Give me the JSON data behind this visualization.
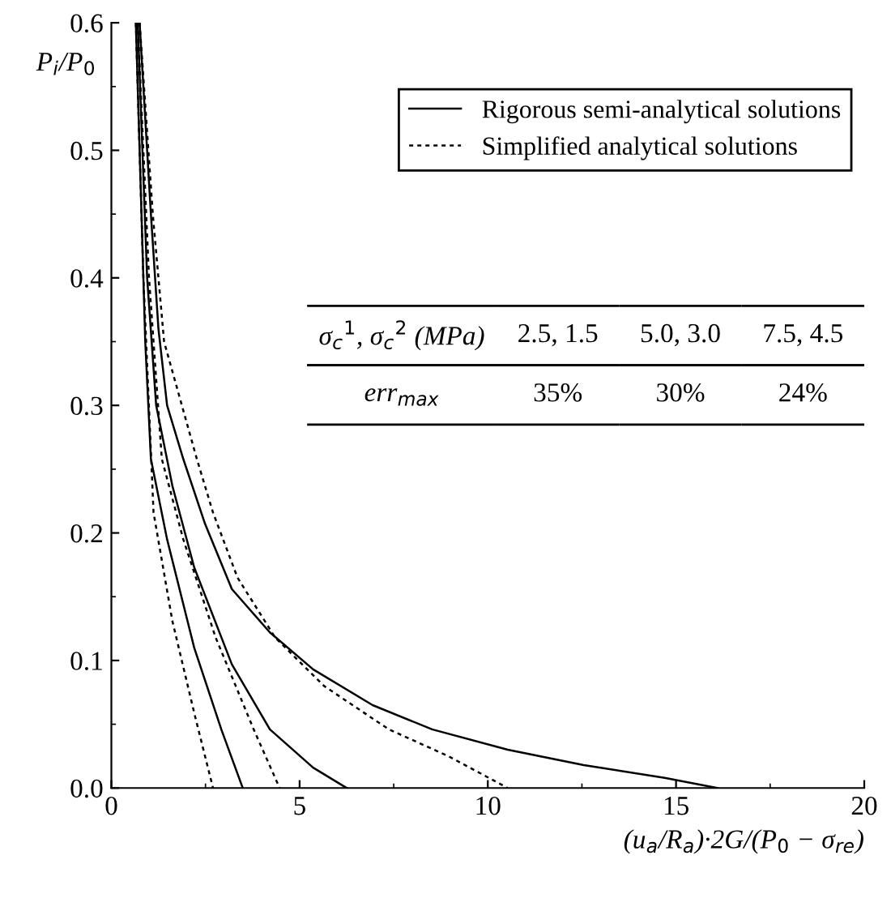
{
  "chart_data": {
    "type": "line",
    "xlabel": "(u$_{a}$/R$_{a}$)·2G/(P$_{0}$ − σ$_{re}$)",
    "ylabel": "P$_{i}$/P$_{0}$",
    "xlim": [
      0,
      20
    ],
    "ylim": [
      0,
      0.6
    ],
    "xticks": [
      0,
      5,
      10,
      15,
      20
    ],
    "yticks": [
      {
        "value": 0,
        "label": "0.0"
      },
      {
        "value": 0.1,
        "label": "0.1"
      },
      {
        "value": 0.2,
        "label": "0.2"
      },
      {
        "value": 0.3,
        "label": "0.3"
      },
      {
        "value": 0.4,
        "label": "0.4"
      },
      {
        "value": 0.5,
        "label": "0.5"
      },
      {
        "value": 0.6,
        "label": "0.6"
      }
    ],
    "legend": "top right",
    "marker": "none",
    "series": [
      {
        "name": "Rigorous semi-analytical solutions",
        "color": "#000000",
        "line_style": "solid",
        "x": [
          0.65,
          0.8,
          0.9,
          1.05,
          1.48,
          2.2,
          2.92,
          3.49
        ],
        "values": [
          0.6,
          0.45,
          0.35,
          0.258,
          0.195,
          0.11,
          0.046,
          0
        ]
      },
      {
        "name": "Simplified analytical solutions",
        "color": "#000000",
        "line_style": "dashed",
        "x": [
          0.65,
          0.85,
          1.12,
          1.62,
          2.2,
          2.7
        ],
        "values": [
          0.6,
          0.4,
          0.216,
          0.131,
          0.059,
          0
        ]
      },
      {
        "color": "#000000",
        "line_style": "solid",
        "x": [
          0.7,
          0.95,
          1.19,
          1.62,
          2.2,
          3.2,
          4.21,
          5.36,
          6.25
        ],
        "values": [
          0.6,
          0.4,
          0.3,
          0.237,
          0.173,
          0.097,
          0.046,
          0.016,
          0
        ]
      },
      {
        "color": "#000000",
        "line_style": "dashed",
        "x": [
          0.7,
          1.0,
          1.34,
          1.91,
          2.77,
          3.78,
          4.47
        ],
        "values": [
          0.6,
          0.4,
          0.258,
          0.195,
          0.118,
          0.046,
          0
        ]
      },
      {
        "color": "#000000",
        "line_style": "solid",
        "x": [
          0.75,
          1.05,
          1.25,
          1.48,
          1.91,
          2.49,
          3.2,
          4.21,
          5.36,
          6.94,
          8.52,
          10.53,
          12.55,
          14.7,
          16.1
        ],
        "values": [
          0.6,
          0.45,
          0.36,
          0.3,
          0.258,
          0.207,
          0.156,
          0.122,
          0.093,
          0.065,
          0.046,
          0.03,
          0.018,
          0.008,
          0
        ]
      },
      {
        "color": "#000000",
        "line_style": "dashed",
        "x": [
          0.75,
          1.1,
          1.4,
          2.27,
          2.7,
          3.35,
          4.35,
          5.65,
          7.37,
          8.95,
          10.53
        ],
        "values": [
          0.6,
          0.45,
          0.35,
          0.258,
          0.216,
          0.165,
          0.118,
          0.08,
          0.046,
          0.025,
          0
        ]
      }
    ],
    "annotations": [
      "σ$_{c}$$^{1}$, σ$_{c}$$^{2}$ (MPa)",
      "2.5, 1.5",
      "5.0, 3.0",
      "7.5, 4.5",
      "err$_{max}$",
      "35%",
      "30%",
      "24%"
    ]
  }
}
